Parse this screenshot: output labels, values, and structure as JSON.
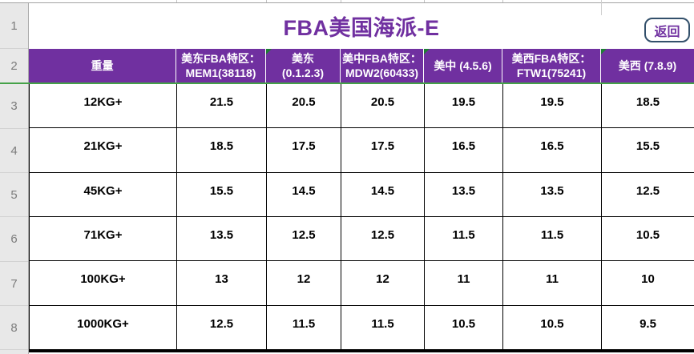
{
  "title": "FBA美国海派-E",
  "back_button": {
    "label": "返回"
  },
  "row_numbers": [
    "1",
    "2",
    "3",
    "4",
    "5",
    "6",
    "7",
    "8"
  ],
  "table": {
    "header": [
      {
        "lines": [
          "重量"
        ],
        "error_marker": false
      },
      {
        "lines": [
          "美东FBA特区：",
          "MEM1(38118)"
        ],
        "error_marker": false
      },
      {
        "lines": [
          "美东",
          "(0.1.2.3)"
        ],
        "error_marker": true
      },
      {
        "lines": [
          "美中FBA特区：",
          "MDW2(60433)"
        ],
        "error_marker": false
      },
      {
        "lines": [
          "美中 (4.5.6)"
        ],
        "error_marker": true
      },
      {
        "lines": [
          "美西FBA特区：",
          "FTW1(75241)"
        ],
        "error_marker": false
      },
      {
        "lines": [
          "美西 (7.8.9)"
        ],
        "error_marker": true
      }
    ],
    "rows": [
      {
        "weight": "12KG+",
        "values": [
          "21.5",
          "20.5",
          "20.5",
          "19.5",
          "19.5",
          "18.5"
        ]
      },
      {
        "weight": "21KG+",
        "values": [
          "18.5",
          "17.5",
          "17.5",
          "16.5",
          "16.5",
          "15.5"
        ]
      },
      {
        "weight": "45KG+",
        "values": [
          "15.5",
          "14.5",
          "14.5",
          "13.5",
          "13.5",
          "12.5"
        ]
      },
      {
        "weight": "71KG+",
        "values": [
          "13.5",
          "12.5",
          "12.5",
          "11.5",
          "11.5",
          "10.5"
        ]
      },
      {
        "weight": "100KG+",
        "values": [
          "13",
          "12",
          "12",
          "11",
          "11",
          "10"
        ]
      },
      {
        "weight": "1000KG+",
        "values": [
          "12.5",
          "11.5",
          "11.5",
          "10.5",
          "10.5",
          "9.5"
        ]
      }
    ]
  },
  "colors": {
    "header_bg": "#7030A0",
    "accent_purple": "#7030A0",
    "button_border": "#33506B",
    "freeze_line_green": "#44A248",
    "error_marker_green": "#1E7E34"
  }
}
